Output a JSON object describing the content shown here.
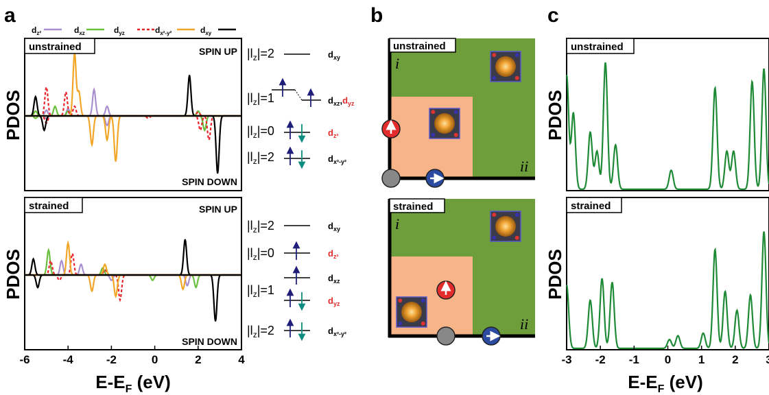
{
  "panel_labels": [
    "a",
    "b",
    "c"
  ],
  "colors": {
    "dz2": "#a98fcf",
    "dxz": "#6bbf3f",
    "dyz": "#e8232a",
    "dx2y2": "#f2a628",
    "dxy": "#000000",
    "green_region": "#6e9e3c",
    "orange_region": "#f6b488",
    "dos_green": "#1e8a36",
    "arrow_up": "#1f1f7a",
    "arrow_down": "#0f8c80",
    "spin_red": "#e32c2c",
    "spin_blue": "#2c4aa0",
    "site_gray": "#888888"
  },
  "legend": [
    {
      "base": "d",
      "sub": "z²",
      "key": "dz2"
    },
    {
      "base": "d",
      "sub": "xz",
      "key": "dxz"
    },
    {
      "base": "d",
      "sub": "yz",
      "key": "dyz"
    },
    {
      "base": "d",
      "sub": "x²-y²",
      "key": "dx2y2"
    },
    {
      "base": "d",
      "sub": "xy",
      "key": "dxy"
    }
  ],
  "panel_a": {
    "top_label": "unstrained",
    "bottom_label": "strained",
    "spin_up": "SPIN UP",
    "spin_down": "SPIN DOWN",
    "ylabel": "PDOS",
    "xlabel_main": "E-E",
    "xlabel_sub": "F",
    "xlabel_unit": " (eV)",
    "x_ticks": [
      "-6",
      "-4",
      "-2",
      "0",
      "2",
      "4"
    ]
  },
  "levels": {
    "lz_prefix": "|l",
    "lz_sub": "z",
    "unstrained": [
      {
        "lz": "|=2",
        "orb": "d",
        "orb_sub": "xy",
        "red": false,
        "extra": ""
      },
      {
        "lz": "|=1",
        "orb": "d",
        "orb_sub": "xz",
        "red": false,
        "extra": "yz"
      },
      {
        "lz": "|=0",
        "orb": "d",
        "orb_sub": "z²",
        "red": true,
        "extra": ""
      },
      {
        "lz": "|=2",
        "orb": "d",
        "orb_sub": "x²-y²",
        "red": false,
        "extra": ""
      }
    ],
    "strained": [
      {
        "lz": "|=2",
        "orb": "d",
        "orb_sub": "xy",
        "red": false
      },
      {
        "lz": "|=0",
        "orb": "d",
        "orb_sub": "z²",
        "red": true
      },
      {
        "lz": "",
        "orb": "d",
        "orb_sub": "xz",
        "red": false
      },
      {
        "lz": "|=1",
        "orb": "d",
        "orb_sub": "yz",
        "red": true
      },
      {
        "lz": "|=2",
        "orb": "d",
        "orb_sub": "x²-y²",
        "red": false
      }
    ]
  },
  "panel_b": {
    "top_label": "unstrained",
    "bottom_label": "strained",
    "region_i": "i",
    "region_ii": "ii"
  },
  "panel_c": {
    "top_label": "unstrained",
    "bottom_label": "strained",
    "ylabel": "PDOS",
    "xlabel_main": "E-E",
    "xlabel_sub": "F",
    "xlabel_unit": " (eV)",
    "x_ticks": [
      "-3",
      "-2",
      "-1",
      "0",
      "1",
      "2",
      "3"
    ]
  },
  "chart_data": [
    {
      "type": "line",
      "title": "unstrained",
      "xlabel": "E-E_F (eV)",
      "ylabel": "PDOS",
      "xlim": [
        -6,
        4
      ],
      "series": [
        {
          "name": "dz2",
          "up": [
            [
              -5.0,
              0.12
            ],
            [
              -4.0,
              0.15
            ],
            [
              -2.8,
              0.55
            ],
            [
              -2.2,
              0.2
            ]
          ],
          "down": [
            [
              -5.0,
              -0.05
            ],
            [
              -2.2,
              -0.2
            ]
          ]
        },
        {
          "name": "dxz",
          "up": [
            [
              -5.5,
              0.1
            ],
            [
              -4.6,
              0.2
            ],
            [
              -4.0,
              0.1
            ],
            [
              2.0,
              0.1
            ]
          ],
          "down": [
            [
              -5.5,
              -0.05
            ],
            [
              2.3,
              -0.3
            ]
          ]
        },
        {
          "name": "dyz",
          "up": [
            [
              -5.0,
              0.6
            ],
            [
              -4.1,
              0.5
            ],
            [
              -3.7,
              0.2
            ],
            [
              2.0,
              0.08
            ]
          ],
          "down": [
            [
              -5.0,
              -0.15
            ],
            [
              -0.3,
              -0.05
            ],
            [
              2.1,
              -0.3
            ],
            [
              2.5,
              -0.5
            ]
          ]
        },
        {
          "name": "dx2y2",
          "up": [
            [
              -3.7,
              1.3
            ],
            [
              -3.5,
              0.5
            ]
          ],
          "down": [
            [
              -2.9,
              -0.6
            ],
            [
              -2.2,
              -0.5
            ],
            [
              -1.8,
              -0.95
            ]
          ]
        },
        {
          "name": "dxy",
          "up": [
            [
              -5.5,
              0.4
            ],
            [
              1.6,
              0.85
            ]
          ],
          "down": [
            [
              -5.1,
              -0.3
            ],
            [
              2.9,
              -1.2
            ]
          ]
        }
      ]
    },
    {
      "type": "line",
      "title": "strained",
      "xlabel": "E-E_F (eV)",
      "ylabel": "PDOS",
      "xlim": [
        -6,
        4
      ],
      "series": [
        {
          "name": "dz2",
          "up": [
            [
              -4.3,
              0.4
            ],
            [
              -3.4,
              0.3
            ]
          ],
          "down": [
            [
              -2.0,
              -0.15
            ],
            [
              1.5,
              -0.3
            ]
          ]
        },
        {
          "name": "dxz",
          "up": [
            [
              -4.9,
              0.7
            ],
            [
              -2.4,
              0.2
            ]
          ],
          "down": [
            [
              -0.1,
              -0.15
            ],
            [
              1.9,
              -0.35
            ]
          ]
        },
        {
          "name": "dyz",
          "up": [
            [
              -4.8,
              0.4
            ],
            [
              -3.8,
              0.6
            ],
            [
              -2.3,
              0.15
            ]
          ],
          "down": [
            [
              -4.4,
              -0.15
            ],
            [
              -1.6,
              -0.7
            ]
          ]
        },
        {
          "name": "dx2y2",
          "up": [
            [
              -4.0,
              0.9
            ],
            [
              -2.3,
              0.3
            ]
          ],
          "down": [
            [
              -2.9,
              -0.45
            ],
            [
              -1.8,
              -0.6
            ],
            [
              1.3,
              -0.4
            ]
          ]
        },
        {
          "name": "dxy",
          "up": [
            [
              -5.6,
              0.45
            ],
            [
              1.4,
              1.0
            ]
          ],
          "down": [
            [
              -5.4,
              -0.35
            ],
            [
              2.8,
              -1.3
            ]
          ]
        }
      ]
    },
    {
      "type": "line",
      "title": "unstrained",
      "xlabel": "E-E_F (eV)",
      "ylabel": "PDOS",
      "xlim": [
        -3,
        3
      ],
      "peaks": [
        [
          -3.0,
          0.9
        ],
        [
          -2.8,
          0.6
        ],
        [
          -2.3,
          0.45
        ],
        [
          -2.1,
          0.3
        ],
        [
          -1.85,
          1.0
        ],
        [
          -1.55,
          0.35
        ],
        [
          0.1,
          0.15
        ],
        [
          1.4,
          0.8
        ],
        [
          1.75,
          0.3
        ],
        [
          1.95,
          0.3
        ],
        [
          2.5,
          0.85
        ],
        [
          2.85,
          0.95
        ]
      ]
    },
    {
      "type": "line",
      "title": "strained",
      "xlabel": "E-E_F (eV)",
      "ylabel": "PDOS",
      "xlim": [
        -3,
        3
      ],
      "peaks": [
        [
          -3.0,
          0.5
        ],
        [
          -2.3,
          0.38
        ],
        [
          -1.95,
          0.55
        ],
        [
          -1.65,
          0.52
        ],
        [
          0.05,
          0.07
        ],
        [
          0.3,
          0.1
        ],
        [
          1.05,
          0.12
        ],
        [
          1.4,
          0.78
        ],
        [
          1.7,
          0.45
        ],
        [
          2.05,
          0.3
        ],
        [
          2.45,
          0.42
        ],
        [
          2.85,
          0.92
        ]
      ]
    }
  ]
}
